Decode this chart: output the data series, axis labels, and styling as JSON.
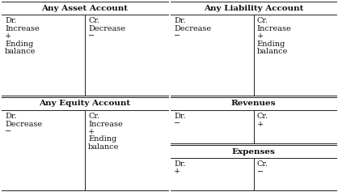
{
  "background_color": "#ffffff",
  "accounts": [
    {
      "title": "Any Asset Account",
      "col": 0,
      "row": 0,
      "left_lines": [
        "Dr.",
        "Increase",
        "+",
        "Ending",
        "balance"
      ],
      "right_lines": [
        "Cr.",
        "Decrease",
        "−"
      ]
    },
    {
      "title": "Any Liability Account",
      "col": 1,
      "row": 0,
      "left_lines": [
        "Dr.",
        "Decrease",
        "−"
      ],
      "right_lines": [
        "Cr.",
        "Increase",
        "+",
        "Ending",
        "balance"
      ]
    },
    {
      "title": "Any Equity Account",
      "col": 0,
      "row": 1,
      "left_lines": [
        "Dr.",
        "Decrease",
        "−"
      ],
      "right_lines": [
        "Cr.",
        "Increase",
        "+",
        "Ending",
        "balance"
      ]
    },
    {
      "title": "Revenues",
      "col": 1,
      "row": 1,
      "left_lines": [
        "Dr.",
        "−"
      ],
      "right_lines": [
        "Cr.",
        "+"
      ]
    },
    {
      "title": "Expenses",
      "col": 1,
      "row": 2,
      "left_lines": [
        "Dr.",
        "+"
      ],
      "right_lines": [
        "Cr.",
        "−"
      ]
    }
  ],
  "line_color": "#222222",
  "text_color": "#111111",
  "title_fontsize": 7.5,
  "body_fontsize": 7.0
}
